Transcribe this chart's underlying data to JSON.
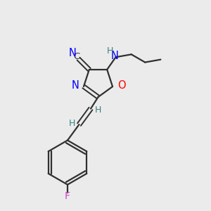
{
  "bg_color": "#ebebeb",
  "bond_color": "#303030",
  "N_color": "#0000ff",
  "O_color": "#ff0000",
  "F_color": "#cc44cc",
  "H_color": "#3a8080",
  "C_color": "#303030",
  "figsize": [
    3.0,
    3.0
  ],
  "dpi": 100,
  "xlim": [
    0,
    10
  ],
  "ylim": [
    0,
    10
  ]
}
